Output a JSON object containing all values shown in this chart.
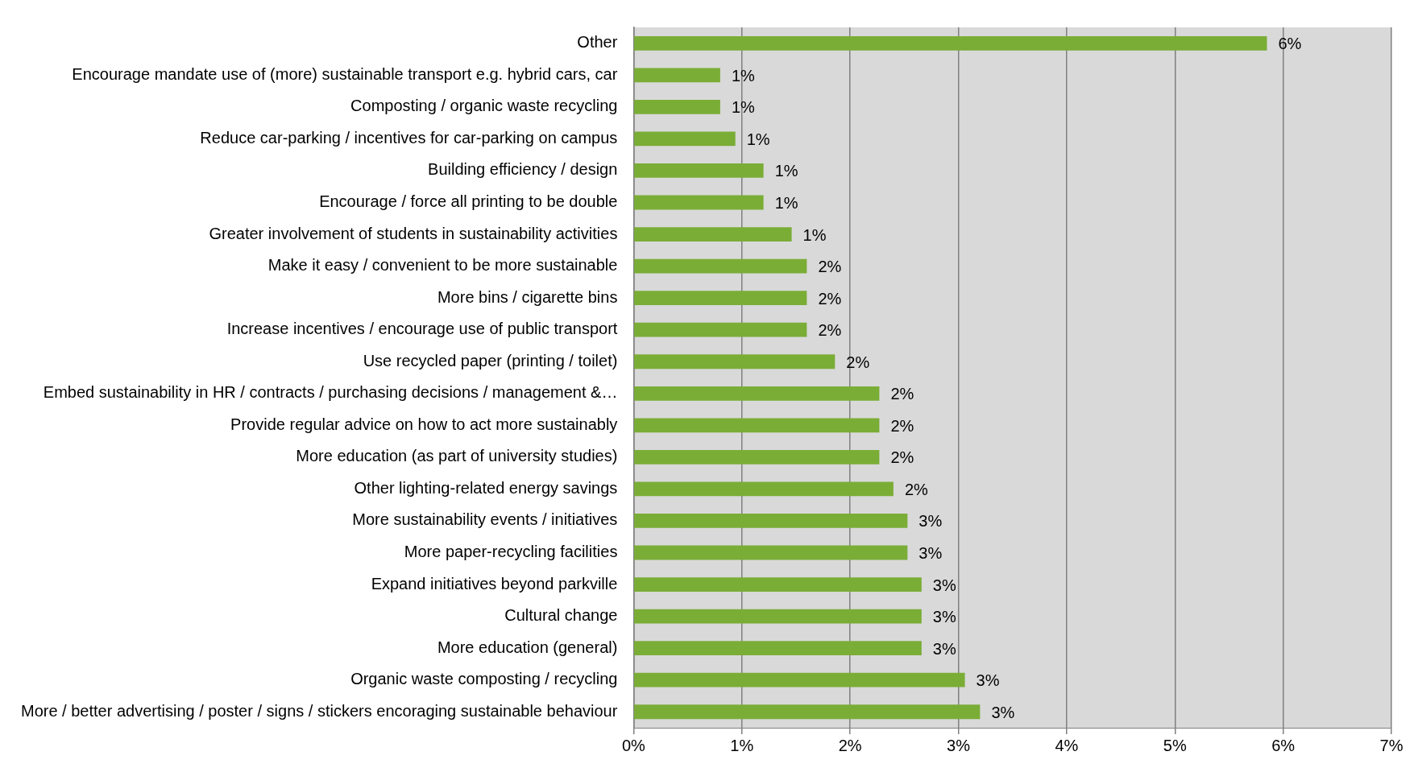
{
  "chart_data": {
    "type": "bar",
    "orientation": "horizontal",
    "categories": [
      "Other",
      "Encourage mandate use of (more) sustainable transport e.g. hybrid cars, car",
      "Composting / organic waste recycling",
      "Reduce car-parking / incentives for car-parking on campus",
      "Building efficiency / design",
      "Encourage / force all printing to be double",
      "Greater involvement of students in sustainability activities",
      "Make it easy / convenient to be more sustainable",
      "More bins / cigarette bins",
      "Increase incentives / encourage use of public transport",
      "Use recycled paper (printing / toilet)",
      "Embed sustainability in HR / contracts / purchasing decisions / management &…",
      "Provide regular advice on how to act more sustainably",
      "More education (as part of university studies)",
      "Other lighting-related energy savings",
      "More sustainability events / initiatives",
      "More paper-recycling facilities",
      "Expand initiatives beyond parkville",
      "Cultural change",
      "More education (general)",
      "Organic waste composting / recycling",
      "More / better advertising / poster / signs / stickers encoraging sustainable behaviour"
    ],
    "values": [
      5.85,
      0.8,
      0.8,
      0.94,
      1.2,
      1.2,
      1.46,
      1.6,
      1.6,
      1.6,
      1.86,
      2.27,
      2.27,
      2.27,
      2.4,
      2.53,
      2.53,
      2.66,
      2.66,
      2.66,
      3.06,
      3.2
    ],
    "value_labels": [
      "6%",
      "1%",
      "1%",
      "1%",
      "1%",
      "1%",
      "1%",
      "2%",
      "2%",
      "2%",
      "2%",
      "2%",
      "2%",
      "2%",
      "2%",
      "3%",
      "3%",
      "3%",
      "3%",
      "3%",
      "3%",
      "3%"
    ],
    "color": "#7aad36",
    "xlim": [
      0,
      7
    ],
    "xticks": [
      {
        "value": 0,
        "label": "0%"
      },
      {
        "value": 1,
        "label": "1%"
      },
      {
        "value": 2,
        "label": "2%"
      },
      {
        "value": 3,
        "label": "3%"
      },
      {
        "value": 4,
        "label": "4%"
      },
      {
        "value": 5,
        "label": "5%"
      },
      {
        "value": 6,
        "label": "6%"
      },
      {
        "value": 7,
        "label": "7%"
      }
    ],
    "grid": "x",
    "legend": false
  }
}
